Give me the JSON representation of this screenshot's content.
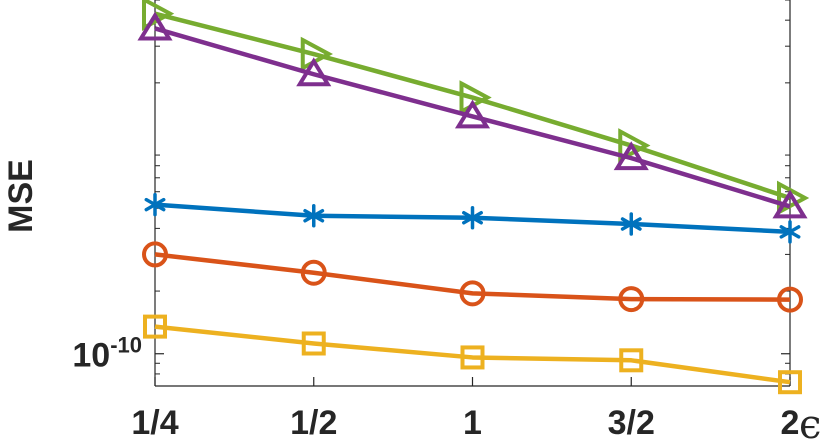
{
  "chart_data": {
    "type": "line",
    "categories": [
      "1/4",
      "1/2",
      "1",
      "3/2",
      "2"
    ],
    "xlabel": "ϵ",
    "ylabel": "MSE",
    "yscale": "log",
    "ylim": [
      7e-11,
      5e-09
    ],
    "ytick_label": {
      "base": "10",
      "exponent": "-10"
    },
    "grid": false,
    "series": [
      {
        "color": "#77AC30",
        "marker": "triangle-right",
        "values": [
          4.3e-09,
          2.75e-09,
          1.7e-09,
          1e-09,
          5.6e-10
        ]
      },
      {
        "color": "#7E2F8E",
        "marker": "triangle-up",
        "values": [
          3.65e-09,
          2.2e-09,
          1.38e-09,
          8.7e-10,
          5.1e-10
        ]
      },
      {
        "color": "#0072BD",
        "marker": "asterisk",
        "values": [
          5.2e-10,
          4.6e-10,
          4.5e-10,
          4.2e-10,
          3.85e-10
        ]
      },
      {
        "color": "#D95319",
        "marker": "circle",
        "values": [
          3e-10,
          2.45e-10,
          1.95e-10,
          1.83e-10,
          1.82e-10
        ]
      },
      {
        "color": "#EDB120",
        "marker": "square",
        "values": [
          1.35e-10,
          1.12e-10,
          9.6e-11,
          9.3e-11,
          7.3e-11
        ]
      }
    ]
  }
}
